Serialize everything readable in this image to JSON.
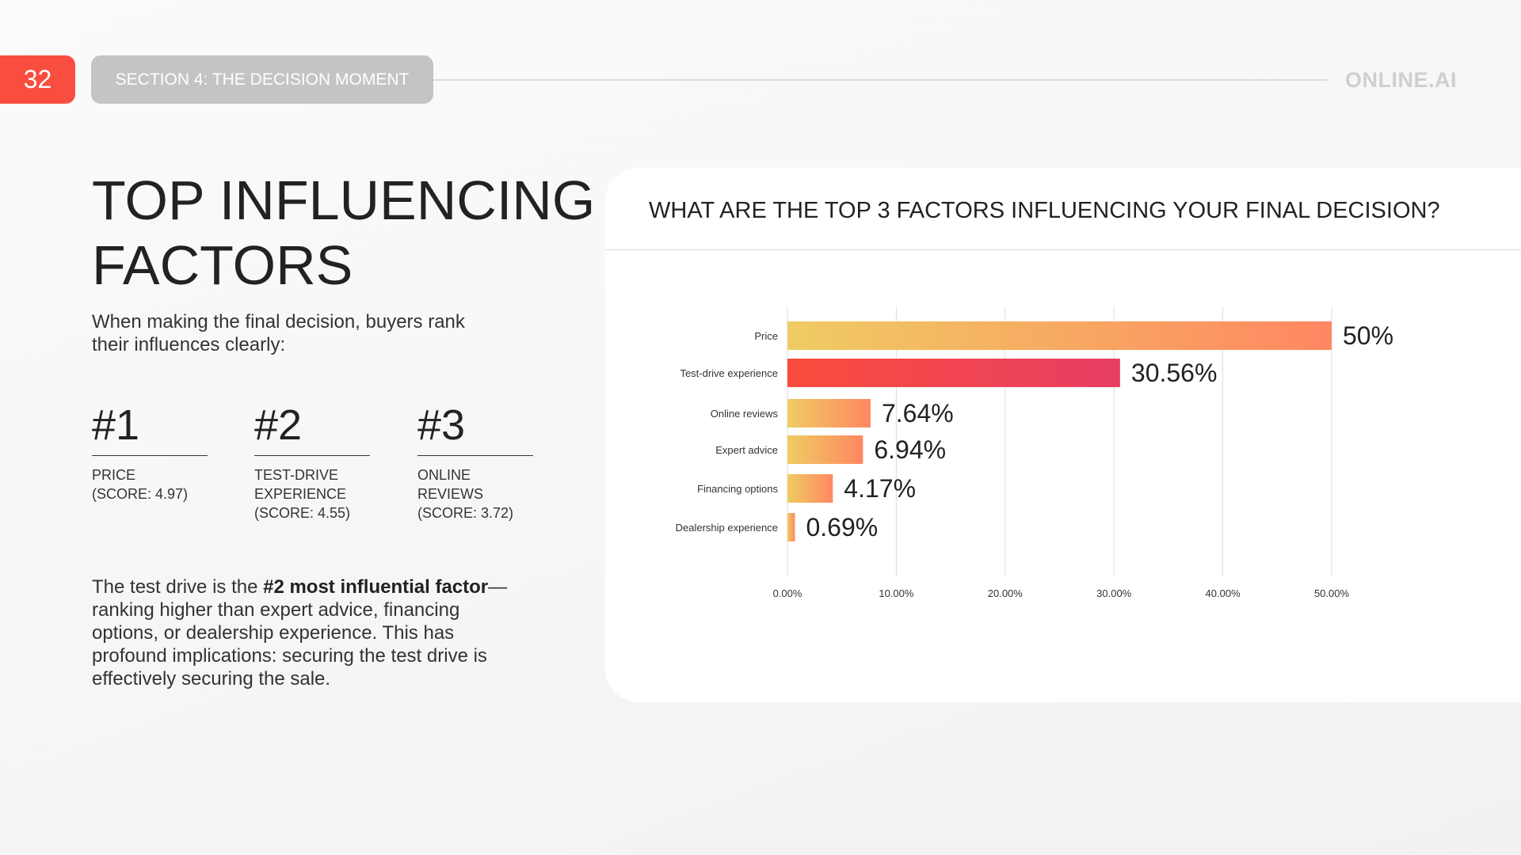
{
  "header": {
    "page_number": "32",
    "section": "SECTION 4: THE DECISION MOMENT",
    "logo": "ONLINE.AI"
  },
  "left": {
    "title_line1": "TOP INFLUENCING",
    "title_line2": "FACTORS",
    "subtitle": "When making the final decision, buyers rank their influences clearly:",
    "ranks": [
      {
        "rank": "#1",
        "label": "PRICE\n(SCORE: 4.97)"
      },
      {
        "rank": "#2",
        "label": "TEST-DRIVE\nEXPERIENCE\n(SCORE: 4.55)"
      },
      {
        "rank": "#3",
        "label": "ONLINE REVIEWS\n(SCORE: 3.72)"
      }
    ],
    "para_pre": "The test drive is the ",
    "para_bold": "#2 most influential factor",
    "para_post": "—ranking higher than expert advice, financing options, or dealership experience. This has profound implications: securing the test drive is effectively securing the sale."
  },
  "colors": {
    "accent": "#f94e3f",
    "bar_start": "#efcc63",
    "bar_end": "#ff8762",
    "highlight_start": "#f94c3c",
    "highlight_end": "#e83e64"
  },
  "chart_data": {
    "type": "bar",
    "orientation": "horizontal",
    "title": "WHAT ARE THE TOP 3 FACTORS INFLUENCING YOUR FINAL DECISION?",
    "categories": [
      "Price",
      "Test-drive experience",
      "Online reviews",
      "Expert advice",
      "Financing options",
      "Dealership experience"
    ],
    "values": [
      50,
      30.56,
      7.64,
      6.94,
      4.17,
      0.69
    ],
    "data_labels": [
      "50%",
      "30.56%",
      "7.64%",
      "6.94%",
      "4.17%",
      "0.69%"
    ],
    "highlight_index": 1,
    "xlim": [
      0,
      50
    ],
    "xticks": [
      "0.00%",
      "10.00%",
      "20.00%",
      "30.00%",
      "40.00%",
      "50.00%"
    ],
    "grid": "vertical"
  }
}
